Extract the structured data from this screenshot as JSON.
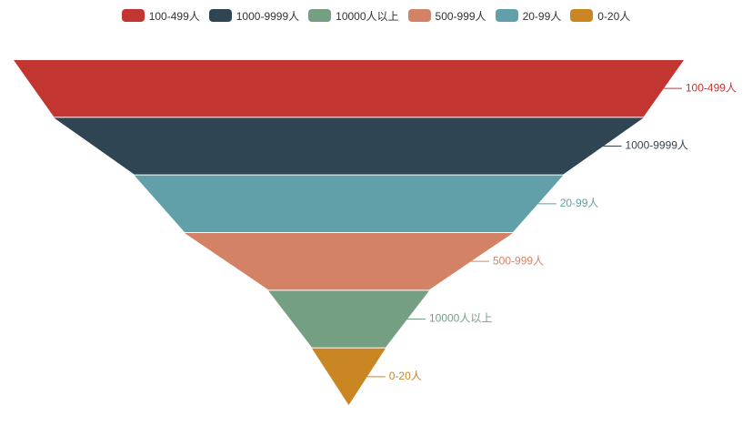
{
  "chart_data": {
    "type": "funnel",
    "sort": "descending",
    "legend_position": "top-center",
    "label_position": "right",
    "series": [
      {
        "data": [
          {
            "name": "100-499人",
            "value": 100,
            "color": "#c23531"
          },
          {
            "name": "1000-9999人",
            "value": 88,
            "color": "#2f4554"
          },
          {
            "name": "20-99人",
            "value": 64,
            "color": "#61a0a8"
          },
          {
            "name": "500-999人",
            "value": 49,
            "color": "#d48265"
          },
          {
            "name": "10000人以上",
            "value": 24,
            "color": "#749f83"
          },
          {
            "name": "0-20人",
            "value": 11,
            "color": "#ca8622"
          }
        ]
      }
    ]
  },
  "legend": {
    "items": [
      {
        "label": "100-499人",
        "color": "#c23531"
      },
      {
        "label": "1000-9999人",
        "color": "#2f4554"
      },
      {
        "label": "10000人以上",
        "color": "#749f83"
      },
      {
        "label": "500-999人",
        "color": "#d48265"
      },
      {
        "label": "20-99人",
        "color": "#61a0a8"
      },
      {
        "label": "0-20人",
        "color": "#ca8622"
      }
    ]
  }
}
